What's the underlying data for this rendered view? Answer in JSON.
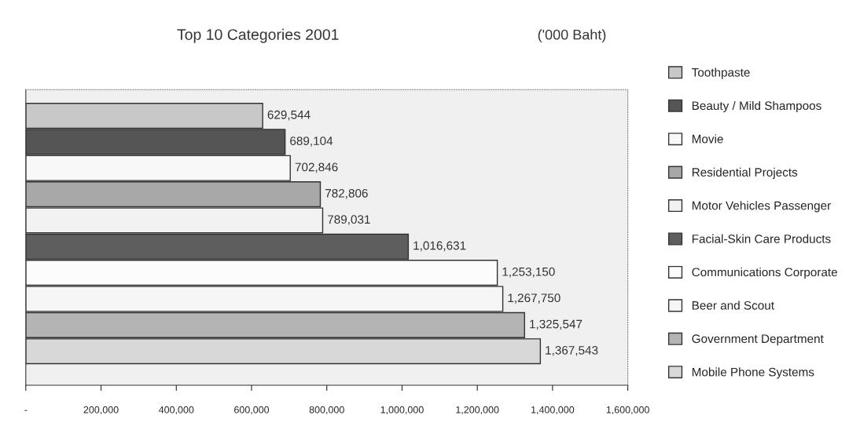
{
  "chart_data": {
    "type": "bar",
    "orientation": "horizontal",
    "stacked": true,
    "title": "Top 10 Categories 2001",
    "subtitle": "('000 Baht)",
    "categories": [
      null,
      null,
      null,
      null,
      null,
      null,
      null,
      null,
      null,
      null
    ],
    "series": [
      {
        "name": "Toothpaste",
        "color": "#c8c8c8",
        "values": [
          629544,
          null,
          null,
          null,
          null,
          null,
          null,
          null,
          null,
          null
        ],
        "value_labels": [
          "629,544",
          null,
          null,
          null,
          null,
          null,
          null,
          null,
          null,
          null
        ]
      },
      {
        "name": "Beauty / Mild Shampoos",
        "color": "#555555",
        "values": [
          null,
          689104,
          null,
          null,
          null,
          null,
          null,
          null,
          null,
          null
        ],
        "value_labels": [
          null,
          "689,104",
          null,
          null,
          null,
          null,
          null,
          null,
          null,
          null
        ]
      },
      {
        "name": "Movie",
        "color": "#f8f8f8",
        "values": [
          null,
          null,
          702846,
          null,
          null,
          null,
          null,
          null,
          null,
          null
        ],
        "value_labels": [
          null,
          null,
          "702,846",
          null,
          null,
          null,
          null,
          null,
          null,
          null
        ]
      },
      {
        "name": "Residential Projects",
        "color": "#a8a8a8",
        "values": [
          null,
          null,
          null,
          782806,
          null,
          null,
          null,
          null,
          null,
          null
        ],
        "value_labels": [
          null,
          null,
          null,
          "782,806",
          null,
          null,
          null,
          null,
          null,
          null
        ]
      },
      {
        "name": "Motor Vehicles Passenger",
        "color": "#f2f2f2",
        "values": [
          null,
          null,
          null,
          null,
          789031,
          null,
          null,
          null,
          null,
          null
        ],
        "value_labels": [
          null,
          null,
          null,
          null,
          "789,031",
          null,
          null,
          null,
          null,
          null
        ]
      },
      {
        "name": "Facial-Skin Care Products",
        "color": "#5e5e5e",
        "values": [
          null,
          null,
          null,
          null,
          null,
          1016631,
          null,
          null,
          null,
          null
        ],
        "value_labels": [
          null,
          null,
          null,
          null,
          null,
          "1,016,631",
          null,
          null,
          null,
          null
        ]
      },
      {
        "name": "Communications Corporate",
        "color": "#fcfcfc",
        "values": [
          null,
          null,
          null,
          null,
          null,
          null,
          1253150,
          null,
          null,
          null
        ],
        "value_labels": [
          null,
          null,
          null,
          null,
          null,
          null,
          "1,253,150",
          null,
          null,
          null
        ]
      },
      {
        "name": "Beer and Scout",
        "color": "#f6f6f6",
        "values": [
          null,
          null,
          null,
          null,
          null,
          null,
          null,
          1267750,
          null,
          null
        ],
        "value_labels": [
          null,
          null,
          null,
          null,
          null,
          null,
          null,
          "1,267,750",
          null,
          null
        ]
      },
      {
        "name": "Government Department",
        "color": "#b4b4b4",
        "values": [
          null,
          null,
          null,
          null,
          null,
          null,
          null,
          null,
          1325547,
          null
        ],
        "value_labels": [
          null,
          null,
          null,
          null,
          null,
          null,
          null,
          null,
          "1,325,547",
          null
        ]
      },
      {
        "name": "Mobile Phone Systems",
        "color": "#d8d8d8",
        "values": [
          null,
          null,
          null,
          null,
          null,
          null,
          null,
          null,
          null,
          1367543
        ],
        "value_labels": [
          null,
          null,
          null,
          null,
          null,
          null,
          null,
          null,
          null,
          "1,367,543"
        ]
      }
    ],
    "xlim": [
      0,
      1600000
    ],
    "xticks": [
      {
        "value": 0,
        "label": "-"
      },
      {
        "value": 200000,
        "label": "200,000"
      },
      {
        "value": 400000,
        "label": "400,000"
      },
      {
        "value": 600000,
        "label": "600,000"
      },
      {
        "value": 800000,
        "label": "800,000"
      },
      {
        "value": 1000000,
        "label": "1,000,000"
      },
      {
        "value": 1200000,
        "label": "1,200,000"
      },
      {
        "value": 1400000,
        "label": "1,400,000"
      },
      {
        "value": 1600000,
        "label": "1,600,000"
      }
    ],
    "tick_labels": "x",
    "legend": "right",
    "grid": false
  }
}
